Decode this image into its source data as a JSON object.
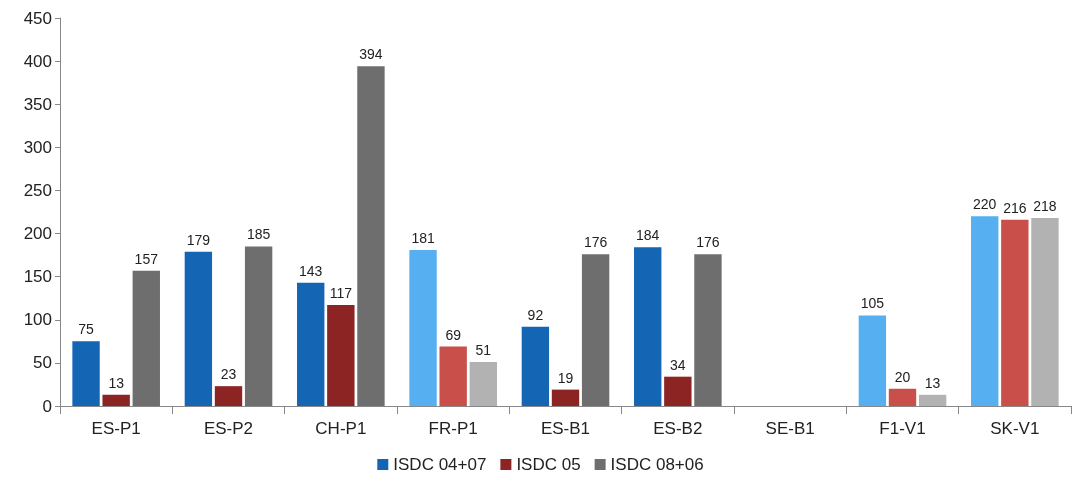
{
  "chart_data": {
    "type": "bar",
    "categories": [
      "ES-P1",
      "ES-P2",
      "CH-P1",
      "FR-P1",
      "ES-B1",
      "ES-B2",
      "SE-B1",
      "F1-V1",
      "SK-V1"
    ],
    "series": [
      {
        "name": "ISDC 04+07",
        "color": "#1466b4",
        "colors": [
          "#1466b4",
          "#1466b4",
          "#1466b4",
          "#55aff0",
          "#1466b4",
          "#1466b4",
          "#1466b4",
          "#55aff0",
          "#55aff0"
        ],
        "values": [
          75,
          179,
          143,
          181,
          92,
          184,
          null,
          105,
          220
        ]
      },
      {
        "name": "ISDC 05",
        "color": "#8c2424",
        "colors": [
          "#8c2424",
          "#8c2424",
          "#8c2424",
          "#c9504a",
          "#8c2424",
          "#8c2424",
          "#8c2424",
          "#c9504a",
          "#c9504a"
        ],
        "values": [
          13,
          23,
          117,
          69,
          19,
          34,
          null,
          20,
          216
        ]
      },
      {
        "name": "ISDC 08+06",
        "color": "#6e6e6e",
        "colors": [
          "#6e6e6e",
          "#6e6e6e",
          "#6e6e6e",
          "#b2b2b2",
          "#6e6e6e",
          "#6e6e6e",
          "#6e6e6e",
          "#b2b2b2",
          "#b2b2b2"
        ],
        "values": [
          157,
          185,
          394,
          51,
          176,
          176,
          null,
          13,
          218
        ]
      }
    ],
    "ylim": [
      0,
      450
    ],
    "yticks": [
      0,
      50,
      100,
      150,
      200,
      250,
      300,
      350,
      400,
      450
    ],
    "grid": false,
    "legend": "bottom",
    "data_labels": true
  }
}
